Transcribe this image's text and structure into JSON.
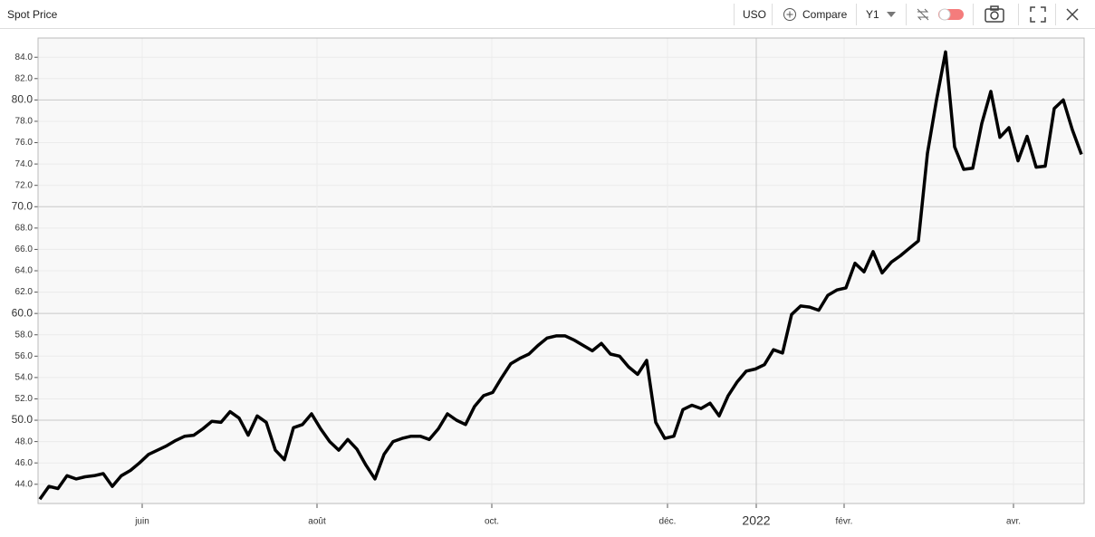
{
  "toolbar": {
    "symbol": "USO",
    "compare": "Compare",
    "period": "Y1"
  },
  "chart_data": {
    "type": "line",
    "title": "Spot Price",
    "series": [
      {
        "color": "#000000",
        "values": [
          42.6,
          43.8,
          43.6,
          44.8,
          44.5,
          44.7,
          44.8,
          45.0,
          43.8,
          44.8,
          45.3,
          46.0,
          46.8,
          47.2,
          47.6,
          48.1,
          48.5,
          48.6,
          49.2,
          49.9,
          49.8,
          50.8,
          50.2,
          48.6,
          50.4,
          49.8,
          47.2,
          46.3,
          49.3,
          49.6,
          50.6,
          49.2,
          48.0,
          47.2,
          48.2,
          47.3,
          45.8,
          44.5,
          46.8,
          48.0,
          48.3,
          48.5,
          48.5,
          48.2,
          49.2,
          50.6,
          50.0,
          49.6,
          51.3,
          52.3,
          52.6,
          54.0,
          55.3,
          55.8,
          56.2,
          57.0,
          57.7,
          57.9,
          57.9,
          57.5,
          57.0,
          56.5,
          57.2,
          56.2,
          56.0,
          55.0,
          54.3,
          55.6,
          49.8,
          48.3,
          48.5,
          51.0,
          51.4,
          51.1,
          51.6,
          50.4,
          52.3,
          53.6,
          54.6,
          54.8,
          55.2,
          56.6,
          56.3,
          59.9,
          60.7,
          60.6,
          60.3,
          61.7,
          62.2,
          62.4,
          64.7,
          63.9,
          65.8,
          63.8,
          64.8,
          65.4,
          66.1,
          66.8,
          75.0,
          80.0,
          84.5,
          75.6,
          73.5,
          73.6,
          77.8,
          80.8,
          76.5,
          77.4,
          74.3,
          76.6,
          73.7,
          73.8,
          79.2,
          80.0,
          77.2,
          74.9
        ]
      }
    ],
    "xlim": [
      -0.2,
      115.3
    ],
    "xticks": [
      {
        "value": 11.3,
        "label": "juin"
      },
      {
        "value": 30.6,
        "label": "août"
      },
      {
        "value": 49.9,
        "label": "oct."
      },
      {
        "value": 69.3,
        "label": "déc."
      },
      {
        "value": 79.1,
        "label": "2022"
      },
      {
        "value": 88.8,
        "label": "févr."
      },
      {
        "value": 107.5,
        "label": "avr."
      }
    ],
    "ylim": [
      42.2,
      85.8
    ],
    "yticks": [
      {
        "value": 44,
        "label": "44.0"
      },
      {
        "value": 46,
        "label": "46.0"
      },
      {
        "value": 48,
        "label": "48.0"
      },
      {
        "value": 50,
        "label": "50.0"
      },
      {
        "value": 52,
        "label": "52.0"
      },
      {
        "value": 54,
        "label": "54.0"
      },
      {
        "value": 56,
        "label": "56.0"
      },
      {
        "value": 58,
        "label": "58.0"
      },
      {
        "value": 60,
        "label": "60.0"
      },
      {
        "value": 62,
        "label": "62.0"
      },
      {
        "value": 64,
        "label": "64.0"
      },
      {
        "value": 66,
        "label": "66.0"
      },
      {
        "value": 68,
        "label": "68.0"
      },
      {
        "value": 70,
        "label": "70.0"
      },
      {
        "value": 72,
        "label": "72.0"
      },
      {
        "value": 74,
        "label": "74.0"
      },
      {
        "value": 76,
        "label": "76.0"
      },
      {
        "value": 78,
        "label": "78.0"
      },
      {
        "value": 80,
        "label": "80.0"
      },
      {
        "value": 82,
        "label": "82.0"
      },
      {
        "value": 84,
        "label": "84.0"
      }
    ],
    "grid": true
  }
}
